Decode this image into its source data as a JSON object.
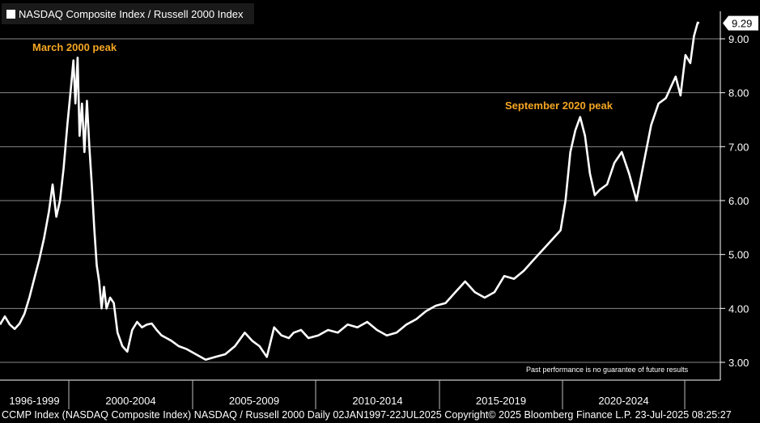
{
  "colors": {
    "background": "#000000",
    "line": "#ffffff",
    "annotation": "#f5a623",
    "grid": "#8a8a8a",
    "last_value_box": "#ffffff"
  },
  "legend": {
    "label": "NASDAQ Composite Index / Russell 2000 Index"
  },
  "annotations": [
    {
      "text": "March 2000 peak"
    },
    {
      "text": "September 2020 peak"
    }
  ],
  "disclaimer": "Past performance is no guarantee of future results",
  "footer": "CCMP Index (NASDAQ Composite Index) NASDAQ / Russell 2000  Daily 02JAN1997-22JUL2025 Copyright© 2025 Bloomberg Finance L.P. 23-Jul-2025 08:25:27",
  "last_value": "9.29",
  "chart_data": {
    "type": "line",
    "title": "",
    "xlabel": "",
    "ylabel": "",
    "ylim": [
      2.9,
      9.5
    ],
    "xlim": [
      1997.0,
      2025.6
    ],
    "grid": "horizontal",
    "y_ticks": [
      "3.00",
      "4.00",
      "5.00",
      "6.00",
      "7.00",
      "8.00",
      "9.00"
    ],
    "x_period_labels": [
      "1996-1999",
      "2000-2004",
      "2005-2009",
      "2010-2014",
      "2015-2019",
      "2020-2024"
    ],
    "series": [
      {
        "name": "NASDAQ Composite Index / Russell 2000 Index",
        "x": [
          1997.0,
          1997.2,
          1997.4,
          1997.6,
          1997.8,
          1998.0,
          1998.2,
          1998.4,
          1998.6,
          1998.8,
          1999.0,
          1999.15,
          1999.3,
          1999.45,
          1999.6,
          1999.75,
          1999.9,
          2000.0,
          2000.08,
          2000.17,
          2000.25,
          2000.35,
          2000.45,
          2000.55,
          2000.65,
          2000.75,
          2000.85,
          2000.95,
          2001.05,
          2001.15,
          2001.25,
          2001.35,
          2001.5,
          2001.65,
          2001.8,
          2002.0,
          2002.2,
          2002.4,
          2002.6,
          2002.8,
          2003.0,
          2003.2,
          2003.4,
          2003.6,
          2003.8,
          2004.0,
          2004.3,
          2004.6,
          2005.0,
          2005.4,
          2005.8,
          2006.2,
          2006.6,
          2007.0,
          2007.3,
          2007.6,
          2007.9,
          2008.2,
          2008.5,
          2008.8,
          2009.0,
          2009.3,
          2009.6,
          2010.0,
          2010.4,
          2010.8,
          2011.2,
          2011.6,
          2012.0,
          2012.4,
          2012.8,
          2013.2,
          2013.6,
          2014.0,
          2014.4,
          2014.8,
          2015.2,
          2015.6,
          2016.0,
          2016.4,
          2016.8,
          2017.2,
          2017.6,
          2018.0,
          2018.4,
          2018.8,
          2019.2,
          2019.6,
          2019.9,
          2020.1,
          2020.3,
          2020.5,
          2020.7,
          2020.9,
          2021.1,
          2021.3,
          2021.5,
          2021.8,
          2022.1,
          2022.4,
          2022.7,
          2023.0,
          2023.3,
          2023.6,
          2023.9,
          2024.2,
          2024.4,
          2024.6,
          2024.8,
          2025.0,
          2025.2,
          2025.35,
          2025.5,
          2025.56
        ],
        "values": [
          3.7,
          3.85,
          3.7,
          3.62,
          3.72,
          3.9,
          4.2,
          4.55,
          4.9,
          5.3,
          5.8,
          6.3,
          5.7,
          6.0,
          6.6,
          7.4,
          8.1,
          8.6,
          7.8,
          8.65,
          7.2,
          7.8,
          6.9,
          7.85,
          7.0,
          6.3,
          5.5,
          4.8,
          4.5,
          4.0,
          4.4,
          4.0,
          4.2,
          4.1,
          3.55,
          3.3,
          3.2,
          3.6,
          3.75,
          3.65,
          3.7,
          3.72,
          3.6,
          3.5,
          3.45,
          3.4,
          3.3,
          3.25,
          3.15,
          3.05,
          3.1,
          3.15,
          3.3,
          3.55,
          3.4,
          3.3,
          3.1,
          3.65,
          3.5,
          3.45,
          3.55,
          3.6,
          3.45,
          3.5,
          3.6,
          3.55,
          3.7,
          3.65,
          3.75,
          3.6,
          3.5,
          3.55,
          3.7,
          3.8,
          3.95,
          4.05,
          4.1,
          4.3,
          4.5,
          4.3,
          4.2,
          4.3,
          4.6,
          4.55,
          4.7,
          4.9,
          5.1,
          5.3,
          5.45,
          6.0,
          6.9,
          7.3,
          7.55,
          7.2,
          6.5,
          6.1,
          6.2,
          6.3,
          6.7,
          6.9,
          6.5,
          6.0,
          6.7,
          7.4,
          7.8,
          7.9,
          8.1,
          8.3,
          7.95,
          8.7,
          8.55,
          9.05,
          9.3,
          9.29
        ]
      }
    ]
  }
}
